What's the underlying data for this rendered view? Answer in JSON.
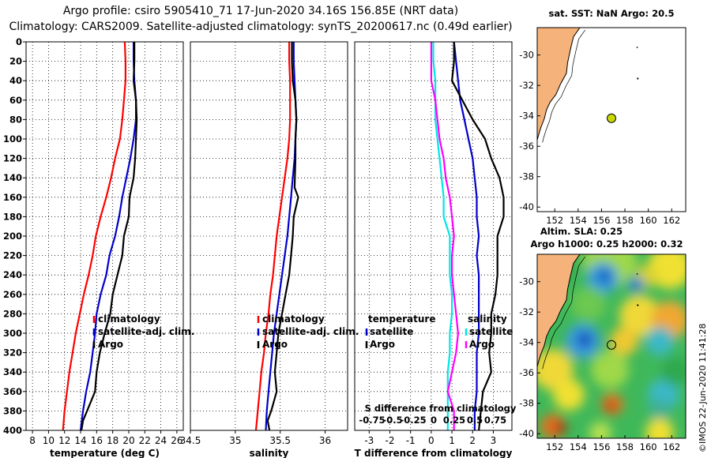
{
  "header": {
    "line1": "Argo profile: csiro 5905410_71 17-Jun-2020 34.16S 156.85E (NRT data)",
    "line2": "Climatology: CARS2009. Satellite-adjusted climatology: synTS_20200617.nc (0.49d earlier)"
  },
  "credit": "©IMOS 22-Jun-2020 11:41:28",
  "colors": {
    "climatology": "#ff0000",
    "satellite": "#0000cc",
    "argo": "#000000",
    "t_diff": "#00e5e5",
    "s_diff": "#ff00ff",
    "land": "#f5b27a"
  },
  "chart_data": [
    {
      "type": "line",
      "panel": "temperature",
      "xlabel": "temperature (deg C)",
      "xlim": [
        7.2,
        26.8
      ],
      "xticks": [
        8,
        10,
        12,
        14,
        16,
        18,
        20,
        22,
        24,
        26
      ],
      "ylim": [
        0,
        400
      ],
      "yticks": [
        0,
        20,
        40,
        60,
        80,
        100,
        120,
        140,
        160,
        180,
        200,
        220,
        240,
        260,
        280,
        300,
        320,
        340,
        360,
        380,
        400
      ],
      "legend": [
        "climatology",
        "satellite-adj. clim.",
        "Argo"
      ],
      "series": [
        {
          "name": "climatology",
          "color": "climatology",
          "x": [
            19.5,
            19.6,
            19.6,
            19.4,
            19.2,
            18.9,
            18.3,
            17.8,
            17.2,
            16.5,
            15.9,
            15.5,
            15.0,
            14.4,
            13.9,
            13.4,
            13.0,
            12.6,
            12.3,
            12.0,
            11.8
          ],
          "y": [
            0,
            20,
            40,
            60,
            80,
            100,
            120,
            140,
            160,
            180,
            200,
            220,
            240,
            260,
            280,
            300,
            320,
            340,
            360,
            380,
            400
          ]
        },
        {
          "name": "satellite-adj. clim.",
          "color": "satellite",
          "x": [
            20.6,
            20.6,
            20.7,
            20.9,
            20.9,
            20.6,
            20.2,
            19.7,
            19.2,
            18.8,
            18.3,
            17.6,
            17.2,
            16.5,
            16.0,
            15.8,
            15.5,
            15.2,
            14.7,
            14.3,
            14.0
          ],
          "y": [
            0,
            20,
            40,
            60,
            80,
            100,
            120,
            140,
            160,
            180,
            200,
            220,
            240,
            260,
            280,
            300,
            320,
            340,
            360,
            380,
            400
          ]
        },
        {
          "name": "Argo",
          "color": "argo",
          "x": [
            20.7,
            20.7,
            20.6,
            20.9,
            21.0,
            20.9,
            20.8,
            20.6,
            20.1,
            20.0,
            19.4,
            19.2,
            18.6,
            18.0,
            17.7,
            17.0,
            16.4,
            16.0,
            15.8,
            14.8,
            14.3,
            14.1
          ],
          "y": [
            0,
            20,
            40,
            60,
            80,
            100,
            120,
            140,
            160,
            180,
            200,
            220,
            240,
            260,
            280,
            300,
            320,
            340,
            360,
            380,
            390,
            400
          ]
        }
      ]
    },
    {
      "type": "line",
      "panel": "salinity",
      "xlabel": "salinity",
      "xlim": [
        34.5,
        36.25
      ],
      "xticks": [
        34.5,
        35,
        35.5,
        36
      ],
      "xtick_labels": [
        "34.5",
        "35",
        "35.5",
        "36"
      ],
      "ylim": [
        0,
        400
      ],
      "legend": [
        "climatology",
        "satellite-adj. clim.",
        "Argo"
      ],
      "series": [
        {
          "name": "climatology",
          "color": "climatology",
          "x": [
            35.6,
            35.6,
            35.61,
            35.61,
            35.61,
            35.6,
            35.58,
            35.55,
            35.52,
            35.49,
            35.46,
            35.44,
            35.42,
            35.39,
            35.37,
            35.34,
            35.32,
            35.29,
            35.27,
            35.25,
            35.23
          ],
          "y": [
            0,
            20,
            40,
            60,
            80,
            100,
            120,
            140,
            160,
            180,
            200,
            220,
            240,
            260,
            280,
            300,
            320,
            340,
            360,
            380,
            400
          ]
        },
        {
          "name": "satellite-adj. clim.",
          "color": "satellite",
          "x": [
            35.65,
            35.65,
            35.66,
            35.67,
            35.68,
            35.67,
            35.66,
            35.64,
            35.62,
            35.6,
            35.58,
            35.55,
            35.52,
            35.49,
            35.46,
            35.43,
            35.41,
            35.39,
            35.37,
            35.35,
            35.34
          ],
          "y": [
            0,
            20,
            40,
            60,
            80,
            100,
            120,
            140,
            160,
            180,
            200,
            220,
            240,
            260,
            280,
            300,
            320,
            340,
            360,
            380,
            400
          ]
        },
        {
          "name": "Argo",
          "color": "argo",
          "x": [
            35.63,
            35.63,
            35.64,
            35.67,
            35.68,
            35.67,
            35.67,
            35.66,
            35.7,
            35.65,
            35.64,
            35.62,
            35.6,
            35.56,
            35.52,
            35.48,
            35.46,
            35.44,
            35.46,
            35.4,
            35.36,
            35.38
          ],
          "y": [
            0,
            20,
            40,
            60,
            80,
            100,
            120,
            150,
            160,
            180,
            200,
            220,
            240,
            260,
            280,
            300,
            320,
            340,
            360,
            380,
            390,
            400
          ]
        }
      ]
    },
    {
      "type": "line",
      "panel": "difference",
      "xlabel": "T difference from climatology",
      "xlim": [
        -3.7,
        3.9
      ],
      "xticks": [
        -3,
        -2,
        -1,
        0,
        1,
        2,
        3
      ],
      "top_axis_label": "S difference from climatology",
      "top_ticks": [
        "-0.75",
        "-0.5",
        "-0.25",
        "0",
        "0.25",
        "0.5",
        "0.75"
      ],
      "ylim": [
        0,
        400
      ],
      "legend_temperature": {
        "heading": "temperature",
        "items": [
          "satellite",
          "Argo"
        ]
      },
      "legend_salinity": {
        "heading": "salinity",
        "items": [
          "satellite",
          "Argo"
        ]
      },
      "series": [
        {
          "name": "T satellite",
          "color": "satellite",
          "x": [
            1.1,
            1.2,
            1.3,
            1.4,
            1.6,
            1.8,
            2.0,
            2.1,
            2.2,
            2.2,
            2.3,
            2.2,
            2.3,
            2.3,
            2.3,
            2.3,
            2.2,
            2.2,
            2.2,
            2.1,
            2.1
          ],
          "y": [
            0,
            20,
            40,
            60,
            80,
            100,
            120,
            140,
            160,
            180,
            200,
            220,
            240,
            260,
            280,
            300,
            320,
            340,
            360,
            380,
            400
          ]
        },
        {
          "name": "T Argo",
          "color": "argo",
          "x": [
            1.1,
            1.1,
            1.0,
            1.5,
            2.0,
            2.6,
            2.9,
            3.3,
            3.5,
            3.5,
            3.2,
            3.2,
            3.2,
            3.1,
            2.9,
            2.9,
            2.8,
            2.9,
            2.5,
            2.4,
            2.3
          ],
          "y": [
            0,
            20,
            40,
            60,
            80,
            100,
            120,
            140,
            160,
            180,
            200,
            220,
            240,
            260,
            280,
            300,
            320,
            340,
            360,
            380,
            400
          ]
        },
        {
          "name": "S satellite",
          "color": "t_diff",
          "x": [
            0.1,
            0.1,
            0.2,
            0.2,
            0.2,
            0.3,
            0.4,
            0.5,
            0.6,
            0.6,
            0.9,
            0.9,
            0.9,
            1.0,
            1.0,
            0.9,
            0.9,
            0.8,
            0.8,
            0.8,
            0.8
          ],
          "y": [
            0,
            20,
            40,
            60,
            80,
            100,
            120,
            140,
            160,
            180,
            200,
            220,
            240,
            260,
            280,
            300,
            320,
            340,
            360,
            380,
            400
          ]
        },
        {
          "name": "S Argo",
          "color": "s_diff",
          "x": [
            0.0,
            0.0,
            0.0,
            0.2,
            0.3,
            0.4,
            0.6,
            0.7,
            0.9,
            1.0,
            1.1,
            1.0,
            1.0,
            1.1,
            1.2,
            1.3,
            1.2,
            1.0,
            0.8,
            1.1,
            1.1
          ],
          "y": [
            0,
            20,
            40,
            60,
            80,
            100,
            120,
            140,
            160,
            180,
            200,
            220,
            240,
            260,
            280,
            300,
            320,
            340,
            360,
            380,
            400
          ]
        }
      ]
    },
    {
      "type": "map",
      "panel": "sst_map",
      "title": "sat. SST: NaN Argo: 20.5",
      "xlim": [
        150.5,
        163.2
      ],
      "ylim": [
        -40.3,
        -28.2
      ],
      "xticks": [
        152,
        154,
        156,
        158,
        160,
        162
      ],
      "yticks": [
        -30,
        -32,
        -34,
        -36,
        -38,
        -40
      ],
      "float_position": {
        "lon": 156.85,
        "lat": -34.16
      }
    },
    {
      "type": "map",
      "panel": "sla_map",
      "title_line1": "Altim. SLA: 0.25",
      "title_line2": "Argo h1000: 0.25 h2000: 0.32",
      "xlim": [
        150.5,
        163.2
      ],
      "ylim": [
        -40.3,
        -28.2
      ],
      "xticks": [
        152,
        154,
        156,
        158,
        160,
        162
      ],
      "yticks": [
        -30,
        -32,
        -34,
        -36,
        -38,
        -40
      ],
      "float_position": {
        "lon": 156.85,
        "lat": -34.16
      }
    }
  ]
}
